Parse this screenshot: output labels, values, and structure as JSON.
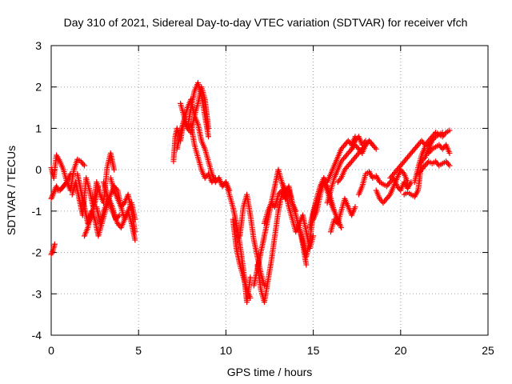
{
  "chart_data": {
    "type": "scatter",
    "title": "Day 310 of 2021, Sidereal Day-to-day VTEC variation (SDTVAR) for receiver vfch",
    "xlabel": "GPS time / hours",
    "ylabel": "SDTVAR / TECUs",
    "xlim": [
      0,
      25
    ],
    "ylim": [
      -4,
      3
    ],
    "xticks": [
      "0",
      "5",
      "10",
      "15",
      "20",
      "25"
    ],
    "yticks": [
      "-4",
      "-3",
      "-2",
      "-1",
      "0",
      "1",
      "2",
      "3"
    ],
    "grid": true,
    "marker": "+",
    "series_color": "#ff0000",
    "traces": [
      {
        "x": [
          0.0,
          0.15,
          0.3,
          0.5,
          0.7,
          0.9,
          1.1,
          1.3,
          1.5,
          1.7,
          1.9
        ],
        "y": [
          0.05,
          -0.2,
          0.35,
          0.2,
          0.0,
          -0.3,
          -0.5,
          0.0,
          0.25,
          0.2,
          0.1
        ]
      },
      {
        "x": [
          0.0,
          0.1,
          0.2,
          0.3,
          0.4,
          0.5,
          0.6,
          0.7,
          0.8,
          0.9,
          1.0,
          1.1
        ],
        "y": [
          -0.7,
          -0.6,
          -0.5,
          -0.4,
          -0.5,
          -0.5,
          -0.45,
          -0.4,
          -0.35,
          -0.3,
          -0.2,
          -0.1
        ]
      },
      {
        "x": [
          0.0,
          0.1,
          0.2
        ],
        "y": [
          -2.05,
          -1.95,
          -1.8
        ]
      },
      {
        "x": [
          1.2,
          1.4,
          1.6,
          1.8,
          2.0,
          2.2,
          2.4,
          2.6,
          2.8,
          3.0,
          3.2,
          3.4,
          3.6
        ],
        "y": [
          -0.6,
          -0.3,
          -0.7,
          -1.1,
          -0.2,
          -0.5,
          -0.9,
          -0.3,
          -0.6,
          -0.8,
          0.05,
          0.4,
          0.0
        ]
      },
      {
        "x": [
          1.9,
          2.1,
          2.3,
          2.5,
          2.7,
          2.9,
          3.1,
          3.3,
          3.5,
          3.7,
          3.9
        ],
        "y": [
          -1.6,
          -1.4,
          -1.0,
          -1.2,
          -1.6,
          -1.3,
          -1.0,
          -0.7,
          -0.9,
          -1.2,
          -1.1
        ]
      },
      {
        "x": [
          1.5,
          1.7,
          1.9,
          2.1,
          2.3,
          2.5,
          2.7
        ],
        "y": [
          -0.1,
          -0.5,
          -0.9,
          -1.3,
          -1.1,
          -0.8,
          -0.4
        ]
      },
      {
        "x": [
          2.6,
          2.8,
          3.0,
          3.2,
          3.4,
          3.6,
          3.8,
          4.0,
          4.2,
          4.4,
          4.6,
          4.8
        ],
        "y": [
          -0.9,
          -1.3,
          -1.0,
          -0.8,
          -0.6,
          -0.4,
          -0.5,
          -0.9,
          -1.2,
          -1.0,
          -1.3,
          -1.7
        ]
      },
      {
        "x": [
          3.0,
          3.2,
          3.4,
          3.6,
          3.8,
          4.0,
          4.2,
          4.4,
          4.6,
          4.8
        ],
        "y": [
          -0.3,
          -0.6,
          -0.9,
          -1.1,
          -1.3,
          -1.4,
          -1.2,
          -1.0,
          -0.8,
          -1.2
        ]
      },
      {
        "x": [
          3.4,
          3.6,
          3.8,
          4.0,
          4.2,
          4.4,
          4.6,
          4.8
        ],
        "y": [
          -0.2,
          -0.5,
          -0.7,
          -0.9,
          -0.8,
          -0.6,
          -1.0,
          -1.5
        ]
      },
      {
        "x": [
          7.0,
          7.1,
          7.2,
          7.4,
          7.6,
          7.8,
          8.0,
          8.2,
          8.4,
          8.6,
          8.8,
          9.0
        ],
        "y": [
          0.2,
          0.8,
          1.0,
          0.7,
          1.2,
          1.5,
          1.7,
          1.3,
          1.6,
          2.0,
          1.7,
          1.0
        ]
      },
      {
        "x": [
          7.4,
          7.6,
          7.8,
          8.0,
          8.2,
          8.4,
          8.6,
          8.8,
          9.0
        ],
        "y": [
          1.6,
          1.3,
          1.0,
          1.5,
          1.9,
          2.1,
          1.8,
          1.3,
          0.8
        ]
      },
      {
        "x": [
          7.2,
          7.4,
          7.6,
          7.8,
          8.0,
          8.2,
          8.4,
          8.6,
          8.8,
          9.0,
          9.2,
          9.4,
          9.6,
          9.8,
          10.0,
          10.2
        ],
        "y": [
          0.5,
          0.9,
          1.2,
          1.0,
          0.9,
          1.3,
          1.1,
          0.7,
          0.5,
          0.2,
          -0.1,
          -0.3,
          -0.2,
          -0.4,
          -0.3,
          -0.5
        ]
      },
      {
        "x": [
          8.0,
          8.2,
          8.4,
          8.6,
          8.8,
          9.0,
          9.2,
          9.4
        ],
        "y": [
          1.1,
          0.6,
          0.3,
          0.0,
          -0.2,
          -0.1,
          -0.3,
          -0.2
        ]
      },
      {
        "x": [
          9.6,
          9.8,
          10.0,
          10.2,
          10.4,
          10.6,
          10.8,
          11.0,
          11.2,
          11.4
        ],
        "y": [
          -0.2,
          -0.4,
          -0.3,
          -0.6,
          -0.9,
          -1.3,
          -1.8,
          -2.4,
          -3.2,
          -2.6
        ]
      },
      {
        "x": [
          10.4,
          10.6,
          10.8,
          11.0,
          11.2,
          11.4
        ],
        "y": [
          -1.2,
          -1.9,
          -2.3,
          -2.6,
          -2.9,
          -3.1
        ]
      },
      {
        "x": [
          10.8,
          11.0,
          11.2,
          11.4,
          11.6,
          11.8,
          12.0,
          12.2
        ],
        "y": [
          -1.6,
          -0.9,
          -0.6,
          -1.1,
          -1.7,
          -2.1,
          -2.5,
          -2.8
        ]
      },
      {
        "x": [
          11.6,
          11.8,
          12.0,
          12.2,
          12.4,
          12.6,
          12.8,
          13.0,
          13.2,
          13.4,
          13.6,
          13.8,
          14.0
        ],
        "y": [
          -2.8,
          -2.4,
          -2.0,
          -1.6,
          -1.2,
          -0.8,
          -0.4,
          0.0,
          -0.3,
          -0.6,
          -0.4,
          -0.8,
          -1.0
        ]
      },
      {
        "x": [
          11.8,
          12.0,
          12.2,
          12.4,
          12.6,
          12.8,
          13.0,
          13.2
        ],
        "y": [
          -2.3,
          -2.9,
          -3.2,
          -2.7,
          -2.2,
          -1.6,
          -1.0,
          -0.6
        ]
      },
      {
        "x": [
          12.2,
          12.4,
          12.6,
          12.8,
          13.0,
          13.2,
          13.4,
          13.6,
          13.8,
          14.0,
          14.2,
          14.4,
          14.6
        ],
        "y": [
          -1.3,
          -1.0,
          -0.8,
          -0.9,
          -0.6,
          -0.5,
          -0.7,
          -0.5,
          -0.8,
          -1.1,
          -1.4,
          -1.8,
          -2.3
        ]
      },
      {
        "x": [
          13.2,
          13.4,
          13.6,
          13.8,
          14.0,
          14.2,
          14.4,
          14.6,
          14.8,
          15.0
        ],
        "y": [
          -0.3,
          -0.5,
          -0.9,
          -1.2,
          -1.5,
          -1.3,
          -1.1,
          -1.5,
          -1.9,
          -1.6
        ]
      },
      {
        "x": [
          14.2,
          14.4,
          14.6,
          14.8,
          15.0,
          15.2,
          15.4,
          15.6,
          15.8,
          16.0,
          16.2,
          16.4,
          16.6,
          16.8,
          17.0,
          17.2,
          17.4
        ],
        "y": [
          -1.4,
          -1.7,
          -2.1,
          -1.7,
          -1.1,
          -0.7,
          -0.4,
          -0.2,
          -0.3,
          -0.1,
          0.1,
          0.3,
          0.5,
          0.6,
          0.7,
          0.6,
          0.8
        ]
      },
      {
        "x": [
          14.8,
          15.0,
          15.2,
          15.4,
          15.6,
          15.8,
          16.0,
          16.2,
          16.4,
          16.6
        ],
        "y": [
          -1.4,
          -1.0,
          -0.7,
          -0.4,
          -0.3,
          -0.5,
          -0.8,
          -1.0,
          -1.2,
          -1.4
        ]
      },
      {
        "x": [
          15.0,
          15.2,
          15.4,
          15.6,
          15.8,
          16.0,
          16.2
        ],
        "y": [
          -1.2,
          -1.0,
          -0.6,
          -0.3,
          -0.4,
          -0.7,
          -1.0
        ]
      },
      {
        "x": [
          16.0,
          16.2,
          16.4,
          16.6,
          16.8,
          17.0,
          17.2,
          17.4
        ],
        "y": [
          -1.5,
          -1.2,
          -1.3,
          -1.0,
          -0.7,
          -0.9,
          -1.1,
          -0.9
        ]
      },
      {
        "x": [
          15.8,
          16.0,
          16.2,
          16.4,
          16.6,
          16.8,
          17.0,
          17.2,
          17.4,
          17.6,
          17.8,
          18.0,
          18.2,
          18.4,
          18.6
        ],
        "y": [
          -0.8,
          -0.5,
          -0.2,
          0.0,
          0.2,
          0.3,
          0.4,
          0.5,
          0.6,
          0.5,
          0.4,
          0.6,
          0.7,
          0.6,
          0.5
        ]
      },
      {
        "x": [
          16.4,
          16.6,
          16.8,
          17.0,
          17.2,
          17.4,
          17.6,
          17.8,
          18.0,
          18.2,
          18.4
        ],
        "y": [
          -0.3,
          -0.2,
          0.0,
          0.1,
          0.2,
          0.3,
          0.4,
          0.5,
          0.6,
          0.7,
          0.6
        ]
      },
      {
        "x": [
          17.2,
          17.4,
          17.6,
          17.8,
          18.0
        ],
        "y": [
          0.5,
          0.7,
          0.8,
          0.6,
          0.7
        ]
      },
      {
        "x": [
          17.6,
          17.8,
          18.0,
          18.2,
          18.4,
          18.6,
          18.8,
          19.0,
          19.2,
          19.4,
          19.6,
          19.8,
          20.0,
          20.2,
          20.4,
          20.6
        ],
        "y": [
          -0.6,
          -0.4,
          -0.1,
          -0.05,
          -0.2,
          -0.15,
          -0.3,
          -0.35,
          -0.4,
          -0.3,
          -0.2,
          -0.4,
          -0.5,
          -0.3,
          -0.45,
          -0.3
        ]
      },
      {
        "x": [
          18.6,
          18.8,
          19.0,
          19.2,
          19.4,
          19.6,
          19.8,
          20.0,
          20.2,
          20.4
        ],
        "y": [
          -0.5,
          -0.7,
          -0.8,
          -0.7,
          -0.6,
          -0.4,
          -0.2,
          0.0,
          -0.1,
          -0.3
        ]
      },
      {
        "x": [
          19.4,
          19.6,
          19.8,
          20.0,
          20.2,
          20.4,
          20.6,
          20.8,
          21.0,
          21.2,
          21.4,
          21.6,
          21.8,
          22.0,
          22.2,
          22.4
        ],
        "y": [
          -0.2,
          -0.1,
          0.0,
          0.1,
          0.2,
          0.3,
          0.4,
          0.5,
          0.6,
          0.7,
          0.6,
          0.7,
          0.8,
          0.9,
          0.85,
          0.9
        ]
      },
      {
        "x": [
          20.2,
          20.4,
          20.6,
          20.8,
          21.0,
          21.2,
          21.4,
          21.6,
          21.8,
          22.0,
          22.2,
          22.4,
          22.6,
          22.8
        ],
        "y": [
          -0.6,
          -0.55,
          -0.6,
          -0.65,
          -0.5,
          0.2,
          0.3,
          0.5,
          0.7,
          0.8,
          0.85,
          0.8,
          0.9,
          0.95
        ]
      },
      {
        "x": [
          21.0,
          21.2,
          21.4,
          21.6,
          21.8,
          22.0,
          22.2,
          22.4,
          22.6,
          22.8
        ],
        "y": [
          -0.1,
          0.0,
          0.1,
          0.2,
          0.15,
          0.2,
          0.1,
          0.15,
          0.2,
          0.1
        ]
      },
      {
        "x": [
          21.6,
          21.8,
          22.0,
          22.2,
          22.4,
          22.6,
          22.8
        ],
        "y": [
          0.4,
          0.5,
          0.55,
          0.6,
          0.5,
          0.6,
          0.4
        ]
      },
      {
        "x": [
          20.8,
          21.0,
          21.2,
          21.4,
          21.6,
          21.8
        ],
        "y": [
          -0.3,
          0.05,
          0.35,
          0.55,
          0.6,
          0.7
        ]
      }
    ]
  }
}
